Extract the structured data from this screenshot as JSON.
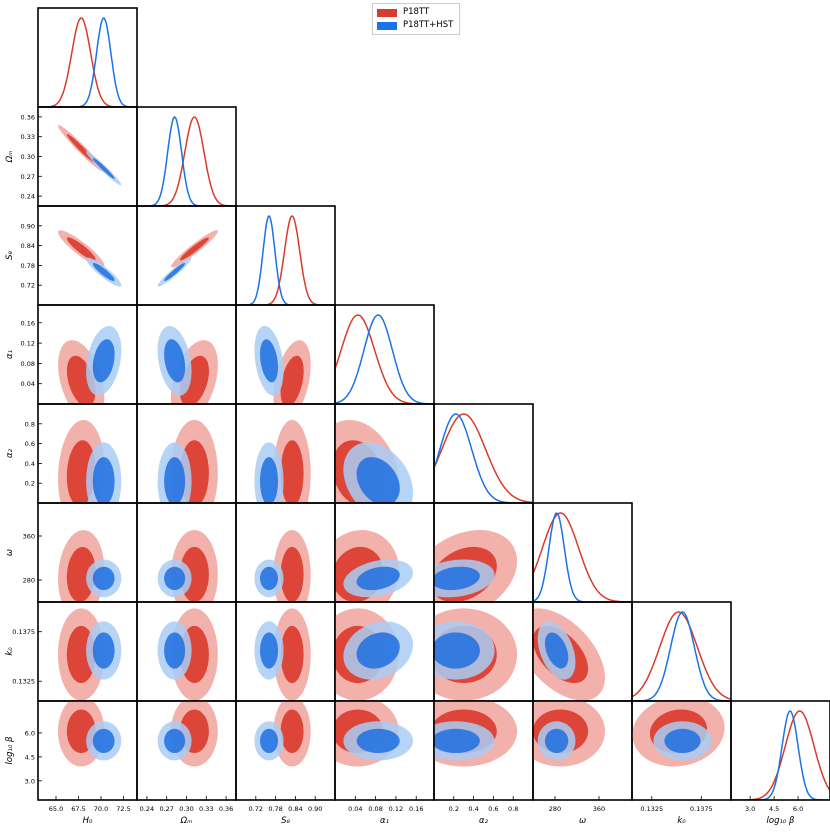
{
  "chart_data": {
    "type": "corner-plot",
    "legend": {
      "placement": "top-center",
      "entries": [
        {
          "name": "P18TT",
          "color": "#d93b2b"
        },
        {
          "name": "P18TT+HST",
          "color": "#1a73e8"
        }
      ]
    },
    "parameters": [
      {
        "key": "H0",
        "label": "H₀",
        "range": [
          63.0,
          74.0
        ],
        "ticks": [
          {
            "v": 65.0,
            "t": "65.0"
          },
          {
            "v": 67.5,
            "t": "67.5"
          },
          {
            "v": 70.0,
            "t": "70.0"
          },
          {
            "v": 72.5,
            "t": "72.5"
          }
        ]
      },
      {
        "key": "Om",
        "label": "Ωₘ",
        "range": [
          0.225,
          0.375
        ],
        "ticks": [
          {
            "v": 0.24,
            "t": "0.24"
          },
          {
            "v": 0.27,
            "t": "0.27"
          },
          {
            "v": 0.3,
            "t": "0.30"
          },
          {
            "v": 0.33,
            "t": "0.33"
          },
          {
            "v": 0.36,
            "t": "0.36"
          }
        ]
      },
      {
        "key": "S8",
        "label": "S₈",
        "range": [
          0.66,
          0.96
        ],
        "ticks": [
          {
            "v": 0.72,
            "t": "0.72"
          },
          {
            "v": 0.78,
            "t": "0.78"
          },
          {
            "v": 0.84,
            "t": "0.84"
          },
          {
            "v": 0.9,
            "t": "0.90"
          }
        ]
      },
      {
        "key": "a1",
        "label": "α₁",
        "range": [
          0.0,
          0.195
        ],
        "ticks": [
          {
            "v": 0.04,
            "t": "0.04"
          },
          {
            "v": 0.08,
            "t": "0.08"
          },
          {
            "v": 0.12,
            "t": "0.12"
          },
          {
            "v": 0.16,
            "t": "0.16"
          }
        ]
      },
      {
        "key": "a2",
        "label": "α₂",
        "range": [
          0.0,
          1.0
        ],
        "ticks": [
          {
            "v": 0.2,
            "t": "0.2"
          },
          {
            "v": 0.4,
            "t": "0.4"
          },
          {
            "v": 0.6,
            "t": "0.6"
          },
          {
            "v": 0.8,
            "t": "0.8"
          }
        ]
      },
      {
        "key": "w",
        "label": "ω",
        "range": [
          240,
          420
        ],
        "ticks": [
          {
            "v": 280,
            "t": "280"
          },
          {
            "v": 360,
            "t": "360"
          }
        ]
      },
      {
        "key": "k0",
        "label": "k₀",
        "range": [
          0.1305,
          0.1405
        ],
        "ticks": [
          {
            "v": 0.1325,
            "t": "0.1325"
          },
          {
            "v": 0.1375,
            "t": "0.1375"
          }
        ]
      },
      {
        "key": "lb",
        "label": "log₁₀ β",
        "range": [
          1.8,
          8.0
        ],
        "ticks": [
          {
            "v": 3.0,
            "t": "3.0"
          },
          {
            "v": 4.5,
            "t": "4.5"
          },
          {
            "v": 6.0,
            "t": "6.0"
          }
        ]
      }
    ],
    "series": [
      {
        "name": "P18TT",
        "means": [
          67.8,
          0.312,
          0.83,
          0.045,
          0.3,
          290,
          0.1352,
          6.1
        ],
        "sigmas": [
          1.05,
          0.0145,
          0.023,
          0.033,
          0.22,
          33,
          0.0019,
          0.9
        ],
        "correlations": [
          [
            0,
            1,
            -0.97
          ],
          [
            0,
            2,
            -0.9
          ],
          [
            1,
            2,
            0.95
          ],
          [
            0,
            3,
            -0.4
          ],
          [
            1,
            3,
            0.4
          ],
          [
            2,
            3,
            0.4
          ],
          [
            0,
            4,
            0.1
          ],
          [
            3,
            4,
            -0.2
          ],
          [
            0,
            5,
            0.1
          ],
          [
            4,
            5,
            0.3
          ],
          [
            5,
            6,
            -0.5
          ],
          [
            3,
            5,
            0.1
          ],
          [
            6,
            7,
            0.1
          ]
        ]
      },
      {
        "name": "P18TT+HST",
        "means": [
          70.3,
          0.282,
          0.76,
          0.085,
          0.22,
          283,
          0.1356,
          5.5
        ],
        "sigmas": [
          0.8,
          0.0105,
          0.018,
          0.028,
          0.16,
          14,
          0.0012,
          0.5
        ],
        "correlations": [
          [
            0,
            1,
            -0.97
          ],
          [
            0,
            2,
            -0.9
          ],
          [
            1,
            2,
            0.95
          ],
          [
            0,
            3,
            0.3
          ],
          [
            1,
            3,
            -0.3
          ],
          [
            2,
            3,
            -0.3
          ],
          [
            3,
            5,
            0.3
          ],
          [
            3,
            4,
            -0.3
          ],
          [
            5,
            6,
            -0.4
          ],
          [
            3,
            6,
            0.2
          ],
          [
            4,
            5,
            0.2
          ]
        ]
      }
    ],
    "contour_levels": [
      "68%",
      "95%"
    ],
    "grid": false
  }
}
